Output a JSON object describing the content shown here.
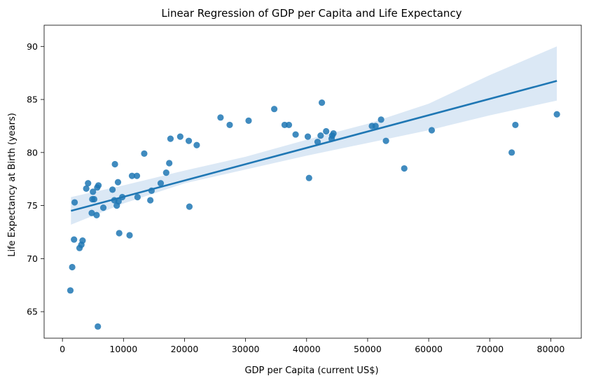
{
  "chart_data": {
    "type": "scatter",
    "title": "Linear Regression of GDP per Capita and Life Expectancy",
    "xlabel": "GDP per Capita (current US$)",
    "ylabel": "Life Expectancy at Birth (years)",
    "xlim": [
      -3000,
      85000
    ],
    "ylim": [
      62.5,
      92
    ],
    "xticks": [
      0,
      10000,
      20000,
      30000,
      40000,
      50000,
      60000,
      70000,
      80000
    ],
    "yticks": [
      65,
      70,
      75,
      80,
      85,
      90
    ],
    "grid": false,
    "colors": {
      "points": "#1f77b4",
      "line": "#1f77b4",
      "band": "#cfe0f1"
    },
    "regression": {
      "x": [
        1400,
        81000
      ],
      "y": [
        74.5,
        86.75
      ],
      "band_lower": [
        73.2,
        84.9
      ],
      "band_upper": [
        75.8,
        90.0
      ],
      "band_samples_x": [
        1400,
        10000,
        20000,
        30000,
        40000,
        50000,
        60000,
        70000,
        81000
      ],
      "band_samples_lower": [
        73.2,
        75.2,
        77.1,
        78.4,
        79.7,
        80.9,
        82.1,
        83.5,
        84.9
      ],
      "band_samples_upper": [
        75.8,
        76.9,
        78.3,
        79.6,
        81.2,
        82.7,
        84.6,
        87.3,
        90.0
      ]
    },
    "points": [
      {
        "x": 1300,
        "y": 67.0
      },
      {
        "x": 1600,
        "y": 69.2
      },
      {
        "x": 1900,
        "y": 71.8
      },
      {
        "x": 2000,
        "y": 75.3
      },
      {
        "x": 2800,
        "y": 71.0
      },
      {
        "x": 3100,
        "y": 71.3
      },
      {
        "x": 3300,
        "y": 71.7
      },
      {
        "x": 3900,
        "y": 76.6
      },
      {
        "x": 4200,
        "y": 77.1
      },
      {
        "x": 4800,
        "y": 74.3
      },
      {
        "x": 4900,
        "y": 75.6
      },
      {
        "x": 5000,
        "y": 76.3
      },
      {
        "x": 5200,
        "y": 75.6
      },
      {
        "x": 5600,
        "y": 74.1
      },
      {
        "x": 5700,
        "y": 76.7
      },
      {
        "x": 5800,
        "y": 63.6
      },
      {
        "x": 5900,
        "y": 76.9
      },
      {
        "x": 6700,
        "y": 74.8
      },
      {
        "x": 8200,
        "y": 76.5
      },
      {
        "x": 8500,
        "y": 75.5
      },
      {
        "x": 8600,
        "y": 78.9
      },
      {
        "x": 8900,
        "y": 75.0
      },
      {
        "x": 9100,
        "y": 77.2
      },
      {
        "x": 9200,
        "y": 75.4
      },
      {
        "x": 9300,
        "y": 72.4
      },
      {
        "x": 9800,
        "y": 75.8
      },
      {
        "x": 11000,
        "y": 72.2
      },
      {
        "x": 11400,
        "y": 77.8
      },
      {
        "x": 12200,
        "y": 77.8
      },
      {
        "x": 12300,
        "y": 75.8
      },
      {
        "x": 13400,
        "y": 79.9
      },
      {
        "x": 14400,
        "y": 75.5
      },
      {
        "x": 14600,
        "y": 76.4
      },
      {
        "x": 16100,
        "y": 77.1
      },
      {
        "x": 17000,
        "y": 78.1
      },
      {
        "x": 17500,
        "y": 79.0
      },
      {
        "x": 17700,
        "y": 81.3
      },
      {
        "x": 19300,
        "y": 81.5
      },
      {
        "x": 20700,
        "y": 81.1
      },
      {
        "x": 20800,
        "y": 74.9
      },
      {
        "x": 22000,
        "y": 80.7
      },
      {
        "x": 25900,
        "y": 83.3
      },
      {
        "x": 27400,
        "y": 82.6
      },
      {
        "x": 30500,
        "y": 83.0
      },
      {
        "x": 34700,
        "y": 84.1
      },
      {
        "x": 36400,
        "y": 82.6
      },
      {
        "x": 37100,
        "y": 82.6
      },
      {
        "x": 38200,
        "y": 81.7
      },
      {
        "x": 40200,
        "y": 81.5
      },
      {
        "x": 40400,
        "y": 77.6
      },
      {
        "x": 41800,
        "y": 81.0
      },
      {
        "x": 42300,
        "y": 81.6
      },
      {
        "x": 42500,
        "y": 84.7
      },
      {
        "x": 43200,
        "y": 82.0
      },
      {
        "x": 44100,
        "y": 81.3
      },
      {
        "x": 44200,
        "y": 81.6
      },
      {
        "x": 44400,
        "y": 81.8
      },
      {
        "x": 50700,
        "y": 82.5
      },
      {
        "x": 51300,
        "y": 82.5
      },
      {
        "x": 52200,
        "y": 83.1
      },
      {
        "x": 53000,
        "y": 81.1
      },
      {
        "x": 56000,
        "y": 78.5
      },
      {
        "x": 60500,
        "y": 82.1
      },
      {
        "x": 73600,
        "y": 80.0
      },
      {
        "x": 74200,
        "y": 82.6
      },
      {
        "x": 81000,
        "y": 83.6
      }
    ]
  }
}
